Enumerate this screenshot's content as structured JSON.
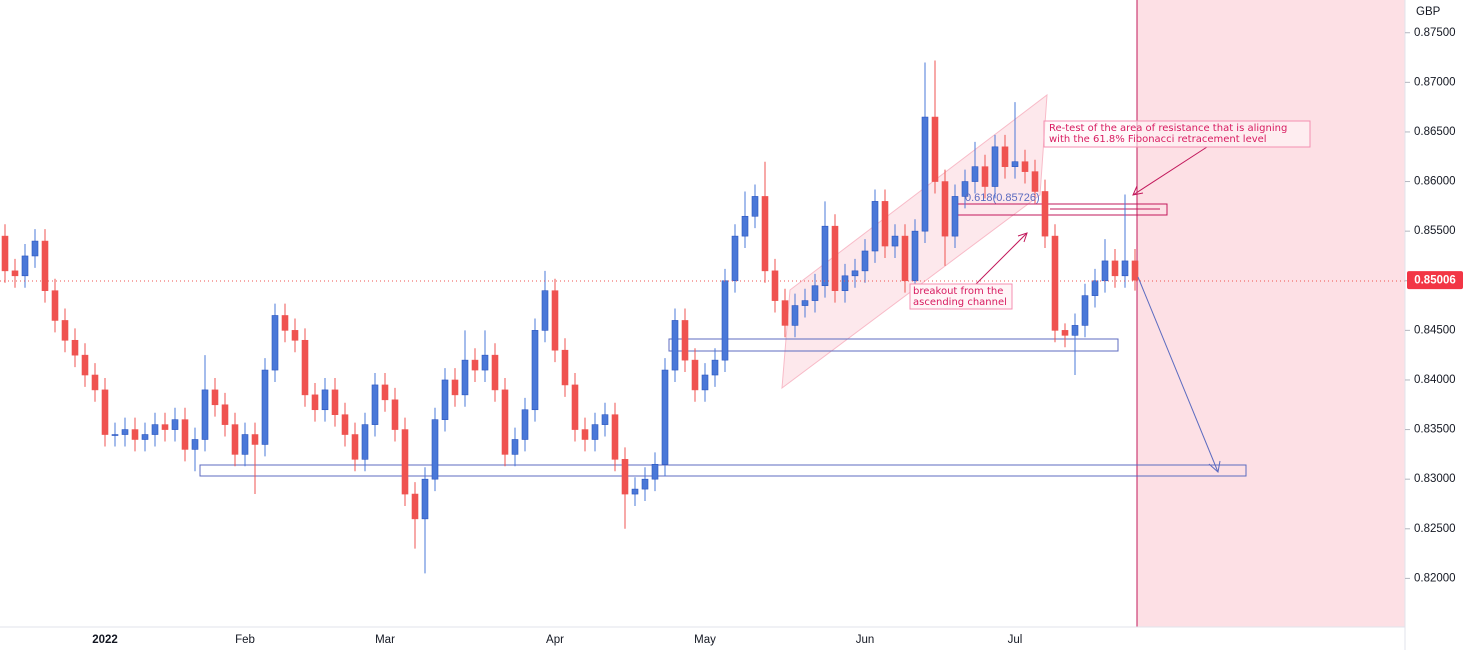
{
  "chart_data": {
    "type": "candlestick",
    "currency": "GBP",
    "categories": [
      null,
      null,
      null,
      null,
      null,
      null,
      null,
      null,
      null,
      null,
      "2022",
      null,
      null,
      null,
      null,
      null,
      null,
      null,
      null,
      null,
      null,
      null,
      null,
      null,
      "Feb",
      null,
      null,
      null,
      null,
      null,
      null,
      null,
      null,
      null,
      null,
      null,
      null,
      null,
      "Mar",
      null,
      null,
      null,
      null,
      null,
      null,
      null,
      null,
      null,
      null,
      null,
      null,
      null,
      null,
      null,
      null,
      "Apr",
      null,
      null,
      null,
      null,
      null,
      null,
      null,
      null,
      null,
      null,
      null,
      null,
      null,
      null,
      "May",
      null,
      null,
      null,
      null,
      null,
      null,
      null,
      null,
      null,
      null,
      null,
      null,
      null,
      null,
      null,
      "Jun",
      null,
      null,
      null,
      null,
      null,
      null,
      null,
      null,
      null,
      null,
      null,
      null,
      null,
      null,
      "Jul",
      null,
      null,
      null,
      null,
      null,
      null,
      null,
      null,
      null,
      null,
      null,
      null
    ],
    "open": [
      0.8545,
      0.851,
      0.8505,
      0.8525,
      0.854,
      0.849,
      0.846,
      0.844,
      0.8425,
      0.8405,
      0.839,
      0.8345,
      0.8345,
      0.835,
      0.834,
      0.8345,
      0.8355,
      0.835,
      0.836,
      0.833,
      0.834,
      0.839,
      0.8375,
      0.8355,
      0.8325,
      0.8345,
      0.8335,
      0.841,
      0.8465,
      0.845,
      0.844,
      0.8385,
      0.837,
      0.839,
      0.8365,
      0.8345,
      0.832,
      0.8355,
      0.8395,
      0.838,
      0.835,
      0.8285,
      0.826,
      0.83,
      0.836,
      0.84,
      0.8385,
      0.842,
      0.841,
      0.8425,
      0.839,
      0.8325,
      0.834,
      0.837,
      0.845,
      0.849,
      0.843,
      0.8395,
      0.835,
      0.834,
      0.8355,
      0.8365,
      0.832,
      0.8285,
      0.829,
      0.83,
      0.8315,
      0.841,
      0.846,
      0.842,
      0.839,
      0.8405,
      0.842,
      0.85,
      0.8545,
      0.8565,
      0.8585,
      0.851,
      0.848,
      0.8455,
      0.8475,
      0.848,
      0.8495,
      0.8555,
      0.849,
      0.8505,
      0.851,
      0.853,
      0.858,
      0.8535,
      0.8545,
      0.85,
      0.855,
      0.8665,
      0.86,
      0.8545,
      0.8585,
      0.86,
      0.8615,
      0.8595,
      0.8635,
      0.8615,
      0.862,
      0.861,
      0.859,
      0.8545,
      0.845,
      0.8445,
      0.8455,
      0.8485,
      0.85,
      0.852,
      0.8505,
      0.852
    ],
    "high": [
      0.8557,
      0.8522,
      0.8537,
      0.8552,
      0.8552,
      0.8502,
      0.8472,
      0.8452,
      0.8437,
      0.8417,
      0.8402,
      0.8357,
      0.8362,
      0.8362,
      0.8357,
      0.8367,
      0.8367,
      0.8372,
      0.8372,
      0.8352,
      0.8425,
      0.8402,
      0.8387,
      0.8367,
      0.8357,
      0.8357,
      0.8422,
      0.8477,
      0.8477,
      0.8462,
      0.8452,
      0.8397,
      0.8402,
      0.8402,
      0.8377,
      0.8357,
      0.8367,
      0.8407,
      0.8407,
      0.8392,
      0.8362,
      0.8297,
      0.8312,
      0.8372,
      0.8412,
      0.8412,
      0.845,
      0.8432,
      0.845,
      0.8437,
      0.8402,
      0.8352,
      0.8382,
      0.8462,
      0.851,
      0.8502,
      0.8442,
      0.8407,
      0.8362,
      0.8367,
      0.8377,
      0.8377,
      0.8332,
      0.8302,
      0.8312,
      0.8327,
      0.8422,
      0.8472,
      0.8472,
      0.8432,
      0.8417,
      0.8432,
      0.8512,
      0.8557,
      0.859,
      0.8597,
      0.862,
      0.8522,
      0.8492,
      0.8487,
      0.8492,
      0.8507,
      0.858,
      0.8567,
      0.8517,
      0.8522,
      0.8542,
      0.8592,
      0.8592,
      0.8557,
      0.8557,
      0.8562,
      0.872,
      0.8722,
      0.8612,
      0.8597,
      0.8612,
      0.864,
      0.8627,
      0.8647,
      0.8647,
      0.868,
      0.8632,
      0.8622,
      0.8602,
      0.8557,
      0.8457,
      0.8467,
      0.8497,
      0.8512,
      0.8542,
      0.8532,
      0.8587,
      0.8532
    ],
    "low": [
      0.8498,
      0.8493,
      0.8493,
      0.8513,
      0.8478,
      0.8448,
      0.8428,
      0.8413,
      0.8393,
      0.8378,
      0.8333,
      0.8333,
      0.8333,
      0.8328,
      0.8328,
      0.8333,
      0.8338,
      0.8338,
      0.8318,
      0.8308,
      0.8328,
      0.8363,
      0.8343,
      0.8313,
      0.8313,
      0.8285,
      0.8323,
      0.8398,
      0.8438,
      0.8428,
      0.8373,
      0.8358,
      0.8358,
      0.8353,
      0.8333,
      0.8308,
      0.8308,
      0.8343,
      0.8368,
      0.8338,
      0.8273,
      0.823,
      0.8205,
      0.8288,
      0.8348,
      0.8373,
      0.8373,
      0.8398,
      0.8398,
      0.8378,
      0.8313,
      0.8313,
      0.8328,
      0.8358,
      0.8438,
      0.8418,
      0.8383,
      0.8338,
      0.8328,
      0.8328,
      0.8343,
      0.8308,
      0.825,
      0.8273,
      0.8278,
      0.8288,
      0.8303,
      0.8398,
      0.8408,
      0.8378,
      0.8378,
      0.8393,
      0.8408,
      0.8488,
      0.8533,
      0.8553,
      0.8498,
      0.8468,
      0.8443,
      0.8443,
      0.8463,
      0.8468,
      0.8483,
      0.8478,
      0.8478,
      0.8493,
      0.8498,
      0.8518,
      0.8523,
      0.8523,
      0.8488,
      0.8488,
      0.8538,
      0.8588,
      0.8515,
      0.8533,
      0.8573,
      0.8588,
      0.8583,
      0.8583,
      0.8603,
      0.8603,
      0.8598,
      0.8578,
      0.8533,
      0.8438,
      0.8433,
      0.8405,
      0.8443,
      0.8473,
      0.8488,
      0.8493,
      0.8493,
      0.849
    ],
    "close": [
      0.851,
      0.8505,
      0.8525,
      0.854,
      0.849,
      0.846,
      0.844,
      0.8425,
      0.8405,
      0.839,
      0.8345,
      0.8345,
      0.835,
      0.834,
      0.8345,
      0.8355,
      0.835,
      0.836,
      0.833,
      0.834,
      0.839,
      0.8375,
      0.8355,
      0.8325,
      0.8345,
      0.8335,
      0.841,
      0.8465,
      0.845,
      0.844,
      0.8385,
      0.837,
      0.839,
      0.8365,
      0.8345,
      0.832,
      0.8355,
      0.8395,
      0.838,
      0.835,
      0.8285,
      0.826,
      0.83,
      0.836,
      0.84,
      0.8385,
      0.842,
      0.841,
      0.8425,
      0.839,
      0.8325,
      0.834,
      0.837,
      0.845,
      0.849,
      0.843,
      0.8395,
      0.835,
      0.834,
      0.8355,
      0.8365,
      0.832,
      0.8285,
      0.829,
      0.83,
      0.8315,
      0.841,
      0.846,
      0.842,
      0.839,
      0.8405,
      0.842,
      0.85,
      0.8545,
      0.8565,
      0.8585,
      0.851,
      0.848,
      0.8455,
      0.8475,
      0.848,
      0.8495,
      0.8555,
      0.849,
      0.8505,
      0.851,
      0.853,
      0.858,
      0.8535,
      0.8545,
      0.85,
      0.855,
      0.8665,
      0.86,
      0.8545,
      0.8585,
      0.86,
      0.8615,
      0.8595,
      0.8635,
      0.8615,
      0.862,
      0.861,
      0.859,
      0.8545,
      0.845,
      0.8445,
      0.8455,
      0.8485,
      0.85,
      0.852,
      0.8505,
      0.852,
      0.85006
    ],
    "up_color": "#4a78d8",
    "down_color": "#ef5350",
    "ylim": [
      0.8151,
      0.8783
    ],
    "yticks": [
      {
        "value": 0.82,
        "label": "0.82000"
      },
      {
        "value": 0.825,
        "label": "0.82500"
      },
      {
        "value": 0.83,
        "label": "0.83000"
      },
      {
        "value": 0.835,
        "label": "0.83500"
      },
      {
        "value": 0.84,
        "label": "0.84000"
      },
      {
        "value": 0.845,
        "label": "0.84500"
      },
      {
        "value": 0.85,
        "label": "0.85000"
      },
      {
        "value": 0.855,
        "label": "0.85500"
      },
      {
        "value": 0.86,
        "label": "0.86000"
      },
      {
        "value": 0.865,
        "label": "0.86500"
      },
      {
        "value": 0.87,
        "label": "0.87000"
      },
      {
        "value": 0.875,
        "label": "0.87500"
      }
    ],
    "last_price": {
      "value": 0.85006,
      "label": "0.85006"
    },
    "grid": false,
    "annotations": {
      "resistance": "Re-test of the area of resistance that is aligning with the 61.8% Fibonacci retracement level",
      "breakout": "breakout from the ascending channel",
      "fibonacci": "0.618(0.85726)"
    }
  }
}
